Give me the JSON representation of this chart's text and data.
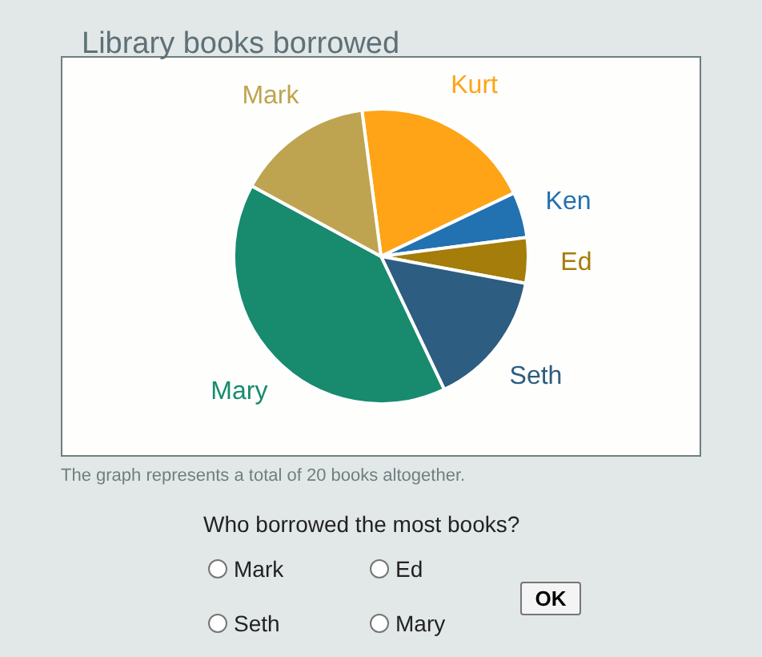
{
  "chart_data": {
    "type": "pie",
    "title": "Library books borrowed",
    "categories": [
      "Kurt",
      "Ken",
      "Ed",
      "Seth",
      "Mary",
      "Mark"
    ],
    "values": [
      20,
      5,
      5,
      15,
      40,
      15
    ],
    "colors": [
      "#fea416",
      "#2271b0",
      "#a47d0a",
      "#2d5d80",
      "#188a6e",
      "#bea450"
    ],
    "annotations": [
      "The graph represents a total of 20 books altogether.",
      "Who borrowed the most books?",
      "Mark",
      "Ed",
      "Seth",
      "Mary",
      "OK"
    ]
  }
}
